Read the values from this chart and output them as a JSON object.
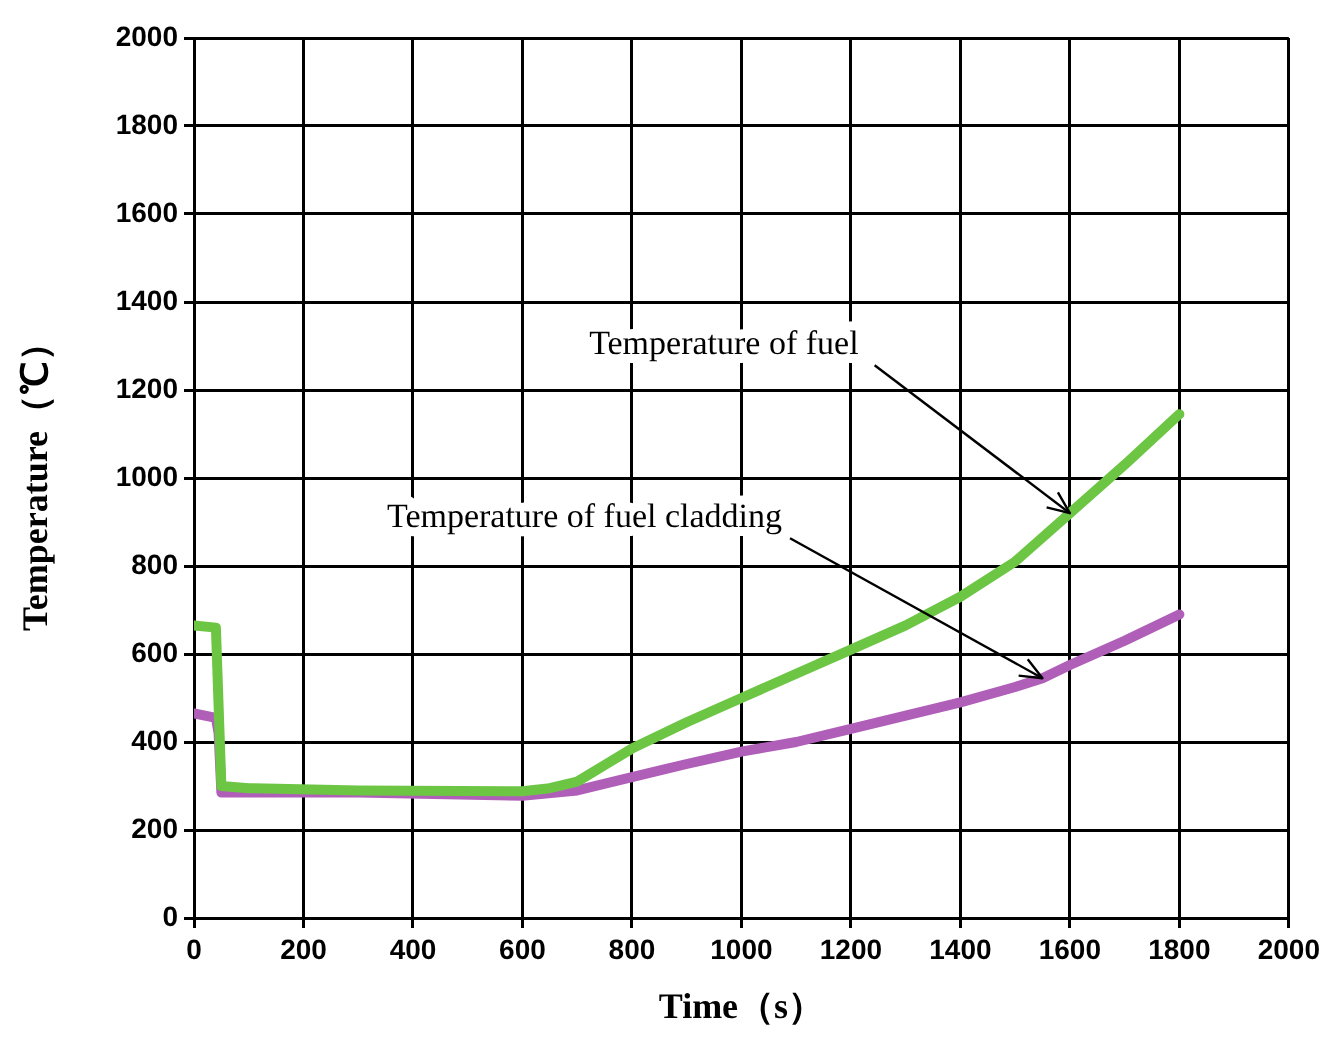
{
  "chart_data": {
    "type": "line",
    "xlabel": "Time（s）",
    "ylabel": "Temperature（℃）",
    "xlim": [
      0,
      2000
    ],
    "ylim": [
      0,
      2000
    ],
    "xticks": [
      0,
      200,
      400,
      600,
      800,
      1000,
      1200,
      1400,
      1600,
      1800,
      2000
    ],
    "yticks": [
      0,
      200,
      400,
      600,
      800,
      1000,
      1200,
      1400,
      1600,
      1800,
      2000
    ],
    "grid": true,
    "legend": false,
    "marker": "none",
    "line_style": "solid",
    "series": [
      {
        "color": "#6cc644",
        "x": [
          0,
          40,
          45,
          50,
          100,
          300,
          600,
          650,
          700,
          800,
          900,
          1000,
          1100,
          1200,
          1300,
          1400,
          1500,
          1600,
          1700,
          1800
        ],
        "values": [
          665,
          660,
          480,
          300,
          295,
          290,
          288,
          295,
          310,
          385,
          445,
          500,
          555,
          610,
          665,
          730,
          810,
          920,
          1030,
          1145
        ]
      },
      {
        "color": "#b05fb8",
        "x": [
          0,
          40,
          45,
          50,
          100,
          300,
          600,
          700,
          800,
          900,
          1000,
          1100,
          1200,
          1300,
          1400,
          1500,
          1550,
          1600,
          1700,
          1800
        ],
        "values": [
          465,
          455,
          420,
          285,
          285,
          285,
          278,
          290,
          320,
          350,
          378,
          400,
          430,
          460,
          490,
          525,
          545,
          575,
          630,
          690
        ]
      }
    ],
    "annotations": [
      {
        "text": "Temperature of fuel",
        "x": 1600,
        "y": 920
      },
      {
        "text": "Temperature of fuel cladding",
        "x": 1550,
        "y": 545
      }
    ]
  }
}
